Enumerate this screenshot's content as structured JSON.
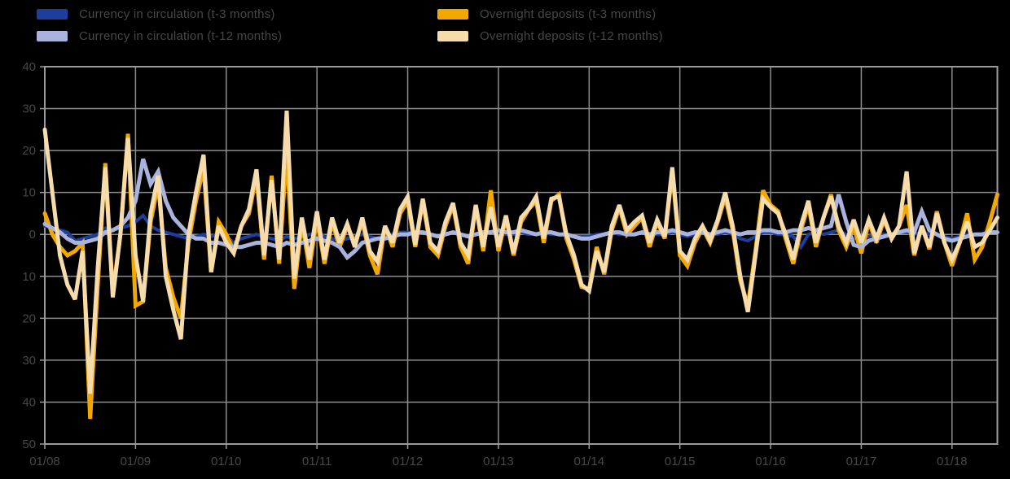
{
  "chart_data": {
    "type": "line",
    "title": "",
    "xlabel": "",
    "ylabel": "",
    "x_axis": {
      "start": "01/08",
      "end": "07/18",
      "frequency": "monthly",
      "tick_labels": [
        "01/08",
        "01/09",
        "01/10",
        "01/11",
        "01/12",
        "01/13",
        "01/14",
        "01/15",
        "01/16",
        "01/17",
        "01/18"
      ]
    },
    "y_axis": {
      "min": -50,
      "max": 40,
      "step": 10,
      "tick_labels_shown": [
        "40",
        "30",
        "20",
        "10",
        "0",
        "10",
        "20",
        "30",
        "40",
        "50"
      ]
    },
    "grid": true,
    "legend_position": "top",
    "colors": {
      "background": "#000000",
      "gridline": "#8c8c8c",
      "plot_border": "#9a9a9a",
      "axis_text": "#474747",
      "legend_text": "#474747"
    },
    "series": [
      {
        "name": "Currency in circulation (t-3 months)",
        "color": "#1c3f9e",
        "stroke_width": 4,
        "values": [
          2,
          1.5,
          1,
          0.5,
          -1.5,
          -1,
          -0.5,
          0,
          1.5,
          1,
          1.5,
          2,
          3,
          4.5,
          2,
          1,
          0.5,
          0,
          -0.5,
          -1,
          -0.5,
          0,
          -0.5,
          0,
          -0.5,
          -2,
          -1,
          -0.5,
          0,
          -0.5,
          -1,
          -1.5,
          -0.5,
          -1,
          -0.5,
          0,
          0,
          -0.5,
          -1,
          -1.5,
          -1,
          -0.5,
          0,
          -0.5,
          -1,
          0,
          0,
          0.5,
          0.5,
          0,
          0.5,
          0,
          -0.5,
          0,
          0.5,
          0,
          -0.5,
          0,
          0,
          0.5,
          0.5,
          0,
          0,
          0.5,
          0,
          0,
          0.5,
          0,
          0,
          0,
          -0.5,
          -0.5,
          -0.5,
          0,
          0,
          0.5,
          0,
          0,
          0,
          0.5,
          0,
          0,
          0,
          0.5,
          0,
          -0.5,
          0,
          0.5,
          0,
          0,
          0.5,
          0,
          -1,
          -1.5,
          -0.5,
          0.5,
          0.5,
          0,
          0,
          -0.5,
          -3,
          0,
          0.5,
          0,
          0.5,
          1,
          0,
          -1,
          -1,
          -0.5,
          0,
          0,
          0,
          0.5,
          0.5,
          0,
          0.5,
          0,
          0,
          -0.5,
          -1,
          -0.5,
          0,
          0,
          0,
          0.5,
          0.5
        ]
      },
      {
        "name": "Overnight deposits (t-3 months)",
        "color": "#f3a800",
        "stroke_width": 5,
        "values": [
          5,
          0,
          -3,
          -5,
          -4,
          -2,
          -44,
          -12,
          17,
          -14,
          0,
          24,
          -17,
          -16,
          3,
          12,
          -8,
          -15,
          -20,
          -2,
          8,
          16,
          -9,
          3,
          0,
          -4,
          2,
          5,
          14,
          -6,
          14,
          -7,
          20,
          -13,
          3,
          -8,
          4,
          -7,
          3,
          -3,
          2,
          -2,
          3,
          -5,
          -9.5,
          2,
          -3,
          5,
          8,
          -3,
          8,
          -3,
          -5,
          2,
          7,
          -3,
          -7,
          7,
          -4,
          10.5,
          -4,
          4,
          -5,
          3,
          6,
          8,
          -2,
          8,
          9.5,
          -1,
          -6,
          -12.5,
          -13,
          -3,
          -9.5,
          1,
          6.5,
          0,
          2,
          4,
          -3,
          3,
          -1,
          15,
          -5,
          -7.5,
          -2,
          1.5,
          -2,
          3,
          9,
          1,
          -11,
          -17,
          -4,
          10.5,
          7,
          5.5,
          -1,
          -7,
          1,
          7,
          -3,
          4,
          9.5,
          1,
          -3,
          2,
          -4.5,
          3,
          -2,
          3.5,
          -1,
          2,
          7,
          -5,
          2,
          -3.5,
          5.5,
          -2,
          -7.5,
          -2,
          5,
          -6,
          -3,
          3,
          9.5
        ]
      },
      {
        "name": "Currency in circulation (t-12 months)",
        "color": "#a9b3dc",
        "stroke_width": 5,
        "values": [
          2.5,
          1.5,
          0.5,
          -1,
          -2,
          -2,
          -1.5,
          -1,
          0.5,
          1,
          2,
          4,
          8,
          18,
          12,
          15,
          8,
          4,
          2,
          0,
          -1,
          -1,
          -2,
          -2,
          -2.5,
          -3,
          -3,
          -2.5,
          -2,
          -2,
          -2.5,
          -3,
          -2,
          -2.5,
          -2,
          -1.5,
          -1,
          -1.5,
          -2,
          -3,
          -5.5,
          -4,
          -2,
          -1.5,
          -1,
          -1,
          -0.5,
          0,
          0,
          0.5,
          0.5,
          0,
          -0.5,
          0,
          0.5,
          0,
          -0.5,
          0,
          0.5,
          0.5,
          1,
          0.5,
          0.5,
          1,
          0.5,
          0,
          0.5,
          0.5,
          0,
          0,
          -0.5,
          -1,
          -1,
          -0.5,
          0,
          0.5,
          0.5,
          0,
          0,
          0.5,
          0,
          0.5,
          0.5,
          1,
          0.5,
          0,
          0.5,
          0.5,
          0,
          0.5,
          1,
          0.5,
          0,
          0.5,
          0.5,
          1,
          1,
          0.5,
          0.5,
          1,
          1,
          1.5,
          1,
          1.5,
          2,
          9.5,
          3,
          -2.5,
          -3,
          -1.5,
          -1,
          -0.5,
          0,
          0.5,
          1,
          0.5,
          5.5,
          1,
          0,
          -1,
          -1.5,
          -1,
          -0.5,
          0,
          0,
          0.5,
          0.5
        ]
      },
      {
        "name": "Overnight deposits (t-12 months)",
        "color": "#f7dcab",
        "stroke_width": 5,
        "values": [
          25,
          10,
          -5,
          -12,
          -15.5,
          -4,
          -38,
          -8,
          16,
          -15,
          0,
          23,
          -5,
          -16,
          5,
          14,
          -10,
          -18,
          -25,
          0,
          10,
          19,
          -9,
          2,
          -2,
          -4.5,
          2,
          6,
          15.5,
          -5,
          13,
          -6,
          29.5,
          -10.5,
          4,
          -6,
          5.5,
          -6,
          4,
          -2,
          2.5,
          -3,
          4,
          -4,
          -6.5,
          2,
          -2,
          6,
          9,
          -2.5,
          8.5,
          -2,
          -4,
          3,
          7.5,
          -2,
          -5,
          7,
          -3,
          6.5,
          -3,
          4.5,
          -4.5,
          4,
          6,
          9,
          -1,
          8.5,
          9,
          0,
          -5,
          -12,
          -13.5,
          -4,
          -9,
          2,
          7,
          1,
          3,
          4.5,
          -2,
          3.5,
          -0.5,
          16,
          -4,
          -6,
          -1,
          2,
          -1.5,
          3.5,
          10,
          2,
          -10,
          -18.5,
          -5,
          8.5,
          6.5,
          5,
          0,
          -6,
          2,
          8,
          -2,
          4,
          9,
          2,
          -2,
          3.5,
          -2,
          3.5,
          -1,
          4,
          -1,
          2,
          15,
          -4.5,
          2,
          -3,
          5,
          -2,
          -6,
          -2,
          3,
          -3,
          -2,
          1,
          4
        ]
      }
    ]
  },
  "legend": {
    "items": [
      {
        "label": "Currency in circulation (t-3 months)"
      },
      {
        "label": "Currency in circulation (t-12 months)"
      },
      {
        "label": "Overnight deposits (t-3 months)"
      },
      {
        "label": "Overnight deposits (t-12 months)"
      }
    ]
  }
}
